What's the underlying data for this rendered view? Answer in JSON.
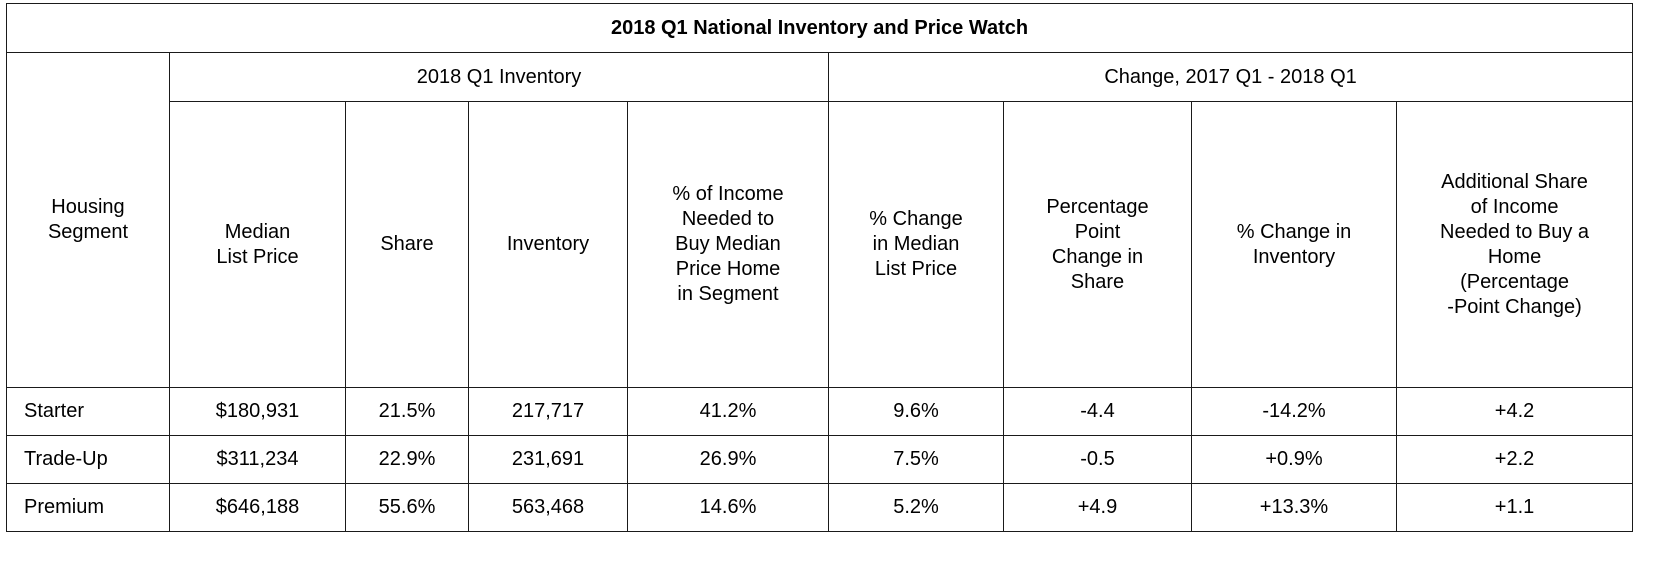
{
  "table": {
    "title": "2018 Q1 National Inventory and Price Watch",
    "segment_header": "Housing\nSegment",
    "groups": [
      {
        "label": "2018 Q1 Inventory"
      },
      {
        "label": "Change, 2017 Q1 - 2018 Q1"
      }
    ],
    "columns": [
      {
        "label": "Median\nList Price"
      },
      {
        "label": "Share"
      },
      {
        "label": "Inventory"
      },
      {
        "label": "% of Income\nNeeded to\nBuy Median\nPrice Home\nin Segment"
      },
      {
        "label": "% Change\nin Median\nList Price"
      },
      {
        "label": "Percentage\nPoint\nChange in\nShare"
      },
      {
        "label": "% Change in\nInventory"
      },
      {
        "label": "Additional Share\nof Income\nNeeded to Buy a\nHome\n(Percentage\n-Point Change)"
      }
    ],
    "rows": [
      {
        "segment": "Starter",
        "cells": [
          "$180,931",
          "21.5%",
          "217,717",
          "41.2%",
          "9.6%",
          "-4.4",
          "-14.2%",
          "+4.2"
        ]
      },
      {
        "segment": "Trade-Up",
        "cells": [
          "$311,234",
          "22.9%",
          "231,691",
          "26.9%",
          "7.5%",
          "-0.5",
          "+0.9%",
          "+2.2"
        ]
      },
      {
        "segment": "Premium",
        "cells": [
          "$646,188",
          "55.6%",
          "563,468",
          "14.6%",
          "5.2%",
          "+4.9",
          "+13.3%",
          "+1.1"
        ]
      }
    ]
  }
}
